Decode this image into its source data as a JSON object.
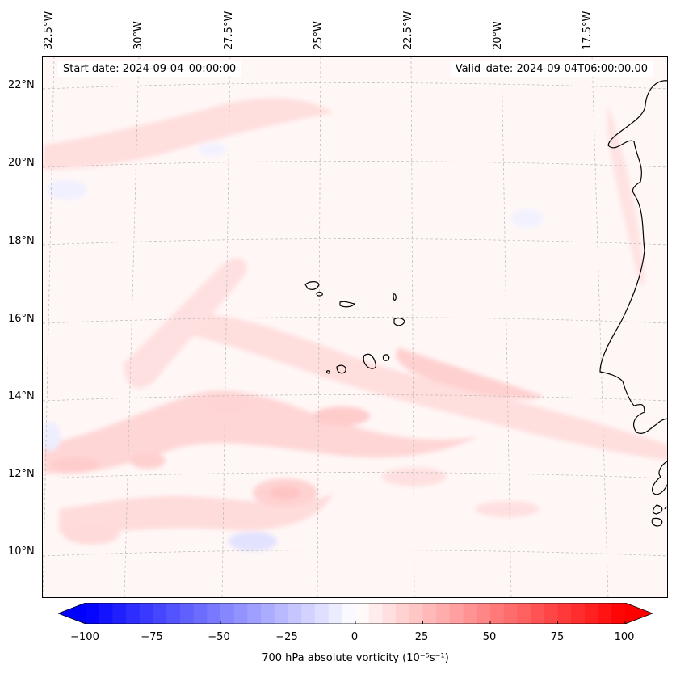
{
  "map": {
    "start_date": "Start date: 2024-09-04_00:00:00",
    "valid_date": "Valid_date: 2024-09-04T06:00:00.00",
    "longitude_labels": [
      "32.5°W",
      "30°W",
      "27.5°W",
      "25°W",
      "22.5°W",
      "20°W",
      "17.5°W"
    ],
    "latitude_labels": [
      "22°N",
      "20°N",
      "18°N",
      "16°N",
      "14°N",
      "12°N",
      "10°N"
    ],
    "coastline_color": "#000000",
    "gridline_color": "#b0b0b0"
  },
  "colorbar": {
    "title": "700 hPa absolute vorticity (10⁻⁵s⁻¹)",
    "tick_labels": [
      "−100",
      "−75",
      "−50",
      "−25",
      "0",
      "25",
      "50",
      "75",
      "100"
    ],
    "vmin": -100,
    "vmax": 100,
    "levels": 41,
    "low_color": "#0000ff",
    "mid_color": "#ffffff",
    "high_color": "#ff0000"
  }
}
